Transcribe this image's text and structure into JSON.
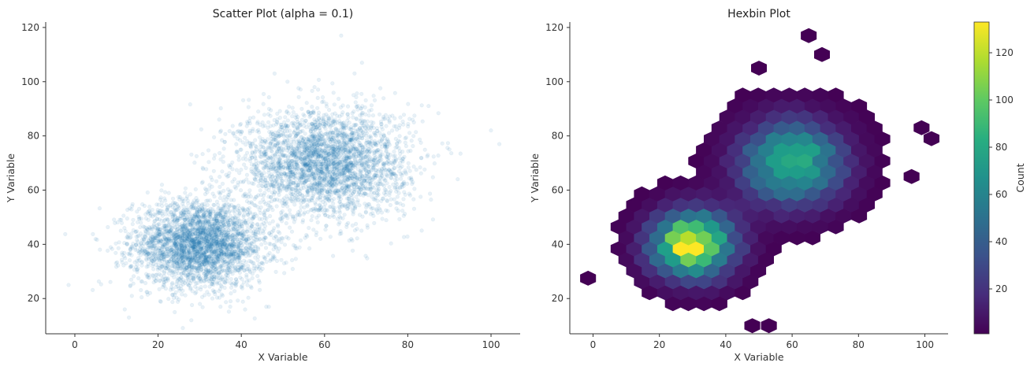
{
  "chart_data": [
    {
      "type": "scatter",
      "title": "Scatter Plot (alpha = 0.1)",
      "xlabel": "X Variable",
      "ylabel": "Y Variable",
      "xlim": [
        -7,
        107
      ],
      "ylim": [
        7,
        122
      ],
      "xticks": [
        0,
        20,
        40,
        60,
        80,
        100
      ],
      "yticks": [
        20,
        40,
        60,
        80,
        100,
        120
      ],
      "point_color": "#1f77b4",
      "alpha": 0.1,
      "grid": false,
      "clusters": [
        {
          "center": [
            30,
            40
          ],
          "std": [
            8,
            8
          ],
          "n": 3000
        },
        {
          "center": [
            60,
            70
          ],
          "std": [
            10,
            10
          ],
          "n": 3000
        }
      ],
      "outlier_points": [
        [
          -1.5,
          25
        ],
        [
          12,
          16
        ],
        [
          13,
          13
        ],
        [
          24,
          15
        ],
        [
          28,
          12
        ],
        [
          35,
          17
        ],
        [
          46,
          17
        ],
        [
          48,
          103
        ],
        [
          64,
          117
        ],
        [
          69,
          107
        ],
        [
          85,
          91
        ],
        [
          90,
          75
        ],
        [
          92,
          64
        ],
        [
          100,
          82
        ],
        [
          102,
          77
        ]
      ]
    },
    {
      "type": "heatmap",
      "subtype": "hexbin",
      "title": "Hexbin Plot",
      "xlabel": "X Variable",
      "ylabel": "Y Variable",
      "xlim": [
        -7,
        107
      ],
      "ylim": [
        7,
        122
      ],
      "xticks": [
        0,
        20,
        40,
        60,
        80,
        100
      ],
      "yticks": [
        20,
        40,
        60,
        80,
        100,
        120
      ],
      "colormap": "viridis",
      "colorbar": {
        "label": "Count",
        "min": 1,
        "max": 133,
        "ticks": [
          20,
          40,
          60,
          80,
          100,
          120
        ]
      },
      "hex_size": 2.7,
      "counts_from_clusters": [
        {
          "center": [
            30,
            40
          ],
          "std": [
            8,
            8
          ],
          "peak": 133
        },
        {
          "center": [
            60,
            70
          ],
          "std": [
            10,
            10
          ],
          "peak": 90
        }
      ],
      "isolated_bins": [
        [
          -1.5,
          27.5
        ],
        [
          65,
          117
        ],
        [
          69,
          110
        ],
        [
          50,
          105
        ],
        [
          102,
          79
        ],
        [
          99,
          83
        ],
        [
          96,
          65
        ],
        [
          48,
          10
        ],
        [
          53,
          10
        ]
      ]
    }
  ]
}
